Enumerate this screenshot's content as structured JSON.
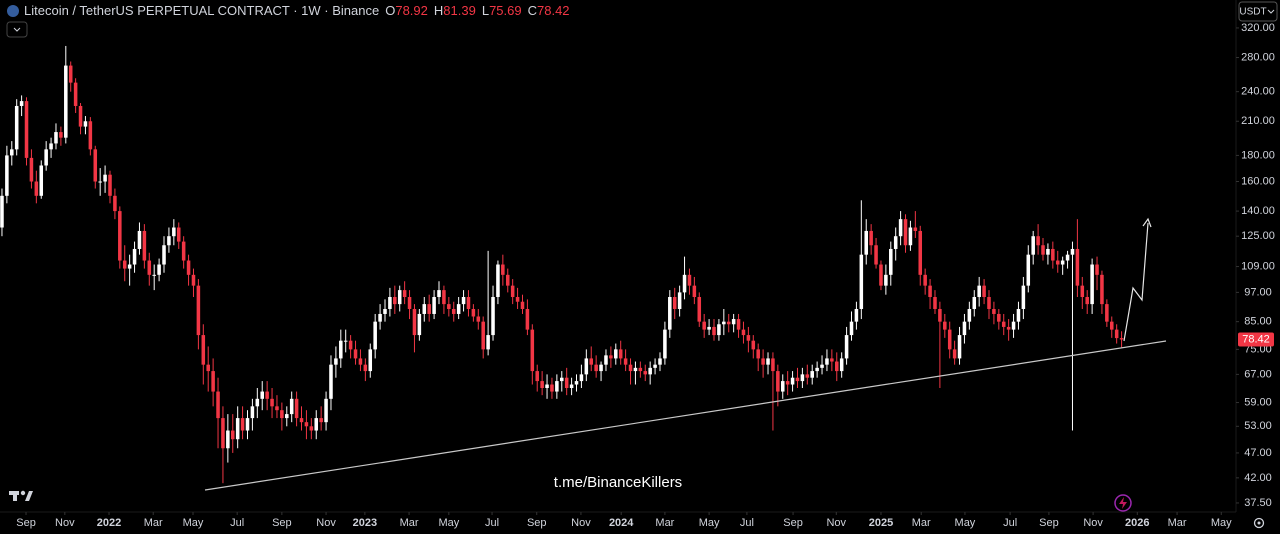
{
  "chart_data": {
    "type": "candlestick",
    "title": "Litecoin / TetherUS PERPETUAL CONTRACT · 1W · Binance",
    "ohlc_labels": [
      "O",
      "H",
      "L",
      "C"
    ],
    "currency": "USDT",
    "watermark": "t.me/BinanceKillers",
    "log_scale": true,
    "grid": false,
    "up_color": "#ffffff",
    "down_color": "#f23645",
    "open": [
      130,
      150,
      180,
      185,
      225,
      230,
      178,
      160,
      150,
      172,
      185,
      190,
      200,
      195,
      270,
      250,
      225,
      205,
      210,
      185,
      160,
      160,
      165,
      150,
      140,
      112,
      108,
      110,
      118,
      128,
      112,
      105,
      105,
      110,
      120,
      125,
      130,
      122,
      112,
      105,
      100,
      80,
      70,
      68,
      62,
      55,
      48,
      52,
      50,
      55,
      52,
      55,
      58,
      60,
      62,
      60,
      58,
      57,
      55,
      56,
      60,
      55,
      54,
      53,
      52,
      55,
      54,
      60,
      70,
      72,
      78,
      78,
      75,
      72,
      70,
      68,
      75,
      85,
      88,
      90,
      95,
      92,
      98,
      95,
      90,
      80,
      88,
      92,
      88,
      95,
      98,
      92,
      90,
      88,
      92,
      95,
      90,
      87,
      85,
      75,
      80,
      95,
      110,
      105,
      100,
      95,
      93,
      90,
      82,
      68,
      65,
      63,
      64,
      62,
      65,
      66,
      63,
      64,
      65,
      67,
      72,
      70,
      68,
      70,
      73,
      72,
      75,
      72,
      70,
      68,
      69,
      68,
      67,
      69,
      70,
      72,
      82,
      95,
      90,
      97,
      105,
      100,
      95,
      85,
      82,
      83,
      80,
      84,
      85,
      84,
      86,
      82,
      80,
      78,
      75,
      72,
      70,
      72,
      68,
      62,
      65,
      64,
      66,
      65,
      67,
      66,
      68,
      69,
      70,
      72,
      71,
      68,
      72,
      80,
      85,
      90,
      115,
      128,
      120,
      110,
      100,
      105,
      118,
      125,
      135,
      120,
      130,
      128,
      105,
      100,
      95,
      90,
      85,
      82,
      75,
      72,
      80,
      85,
      90,
      95,
      100,
      95,
      90,
      88,
      85,
      83,
      82,
      85,
      90,
      100,
      115,
      125,
      120,
      115,
      118,
      112,
      110,
      112,
      115,
      118,
      100,
      95,
      92,
      110,
      105,
      92,
      85,
      82,
      78.92
    ],
    "high": [
      155,
      188,
      192,
      232,
      236,
      234,
      185,
      168,
      176,
      192,
      195,
      208,
      205,
      295,
      275,
      255,
      228,
      215,
      214,
      188,
      170,
      172,
      168,
      155,
      143,
      120,
      115,
      122,
      133,
      132,
      116,
      110,
      113,
      125,
      130,
      135,
      133,
      125,
      115,
      108,
      103,
      84,
      76,
      72,
      66,
      58,
      56,
      56,
      58,
      58,
      57,
      60,
      63,
      65,
      65,
      63,
      61,
      59,
      58,
      62,
      62,
      58,
      57,
      55,
      57,
      58,
      62,
      73,
      76,
      82,
      82,
      80,
      78,
      75,
      72,
      77,
      88,
      92,
      94,
      99,
      100,
      100,
      102,
      98,
      92,
      90,
      95,
      96,
      98,
      102,
      100,
      95,
      93,
      95,
      98,
      98,
      92,
      90,
      87,
      117,
      100,
      112,
      115,
      108,
      103,
      99,
      96,
      94,
      84,
      70,
      68,
      67,
      66,
      67,
      68,
      69,
      66,
      67,
      70,
      75,
      76,
      73,
      71,
      75,
      76,
      77,
      78,
      75,
      72,
      71,
      71,
      70,
      71,
      72,
      74,
      85,
      98,
      99,
      100,
      114,
      108,
      104,
      97,
      88,
      86,
      86,
      86,
      90,
      88,
      88,
      88,
      85,
      83,
      80,
      77,
      75,
      74,
      74,
      70,
      67,
      68,
      68,
      69,
      69,
      70,
      70,
      71,
      73,
      75,
      75,
      74,
      74,
      83,
      89,
      93,
      147,
      135,
      132,
      124,
      112,
      110,
      122,
      130,
      140,
      138,
      134,
      140,
      131,
      108,
      103,
      98,
      93,
      88,
      85,
      78,
      83,
      88,
      93,
      98,
      104,
      103,
      98,
      93,
      90,
      88,
      86,
      88,
      93,
      104,
      120,
      128,
      132,
      124,
      121,
      122,
      117,
      114,
      117,
      122,
      135,
      104,
      98,
      113,
      114,
      107,
      94,
      87,
      84,
      81.39
    ],
    "low": [
      125,
      145,
      172,
      180,
      215,
      172,
      155,
      145,
      148,
      168,
      178,
      185,
      188,
      190,
      240,
      218,
      198,
      198,
      180,
      155,
      150,
      152,
      145,
      135,
      108,
      102,
      100,
      106,
      115,
      108,
      100,
      98,
      102,
      106,
      116,
      120,
      118,
      108,
      100,
      95,
      75,
      64,
      62,
      58,
      48,
      41,
      45,
      47,
      48,
      50,
      50,
      52,
      55,
      57,
      57,
      55,
      55,
      52,
      53,
      54,
      53,
      52,
      50,
      50,
      50,
      52,
      52,
      57,
      66,
      69,
      74,
      72,
      70,
      68,
      65,
      66,
      72,
      82,
      85,
      87,
      88,
      89,
      92,
      86,
      74,
      78,
      85,
      85,
      86,
      92,
      88,
      87,
      85,
      86,
      89,
      87,
      85,
      82,
      72,
      73,
      78,
      92,
      100,
      97,
      92,
      90,
      88,
      80,
      64,
      62,
      61,
      60,
      60,
      60,
      62,
      61,
      61,
      62,
      63,
      65,
      68,
      66,
      65,
      68,
      69,
      70,
      70,
      68,
      64,
      64,
      66,
      65,
      64,
      67,
      68,
      70,
      79,
      86,
      87,
      94,
      96,
      92,
      83,
      79,
      80,
      78,
      78,
      80,
      81,
      81,
      79,
      77,
      74,
      72,
      68,
      66,
      67,
      52,
      58,
      60,
      61,
      62,
      63,
      63,
      64,
      64,
      66,
      67,
      68,
      68,
      65,
      66,
      70,
      78,
      82,
      86,
      110,
      115,
      108,
      98,
      96,
      100,
      112,
      120,
      116,
      117,
      124,
      100,
      96,
      90,
      88,
      63,
      79,
      72,
      70,
      70,
      77,
      82,
      87,
      91,
      92,
      86,
      84,
      82,
      80,
      78,
      79,
      82,
      86,
      97,
      110,
      115,
      112,
      110,
      108,
      106,
      105,
      108,
      52,
      95,
      90,
      88,
      88,
      98,
      88,
      83,
      79,
      77,
      75.69
    ],
    "close": [
      150,
      180,
      185,
      225,
      230,
      178,
      160,
      150,
      172,
      185,
      190,
      200,
      195,
      270,
      250,
      225,
      205,
      210,
      185,
      160,
      160,
      165,
      150,
      140,
      112,
      108,
      110,
      118,
      128,
      112,
      105,
      105,
      110,
      120,
      125,
      130,
      122,
      112,
      105,
      100,
      80,
      70,
      68,
      62,
      55,
      48,
      52,
      50,
      55,
      52,
      55,
      58,
      60,
      62,
      60,
      58,
      57,
      55,
      56,
      60,
      55,
      54,
      53,
      52,
      55,
      54,
      60,
      70,
      72,
      78,
      78,
      75,
      72,
      70,
      68,
      75,
      85,
      88,
      90,
      95,
      92,
      98,
      95,
      90,
      80,
      88,
      92,
      88,
      95,
      98,
      92,
      90,
      88,
      92,
      95,
      90,
      87,
      85,
      75,
      80,
      95,
      110,
      105,
      100,
      95,
      93,
      90,
      82,
      68,
      65,
      63,
      64,
      62,
      65,
      66,
      63,
      64,
      65,
      67,
      72,
      70,
      68,
      70,
      73,
      72,
      75,
      72,
      70,
      68,
      69,
      68,
      67,
      69,
      70,
      72,
      82,
      95,
      90,
      97,
      105,
      100,
      95,
      85,
      82,
      83,
      80,
      84,
      85,
      84,
      86,
      82,
      80,
      78,
      75,
      72,
      70,
      72,
      68,
      62,
      65,
      64,
      66,
      65,
      67,
      66,
      68,
      69,
      70,
      72,
      71,
      68,
      72,
      80,
      85,
      90,
      115,
      128,
      120,
      110,
      100,
      105,
      118,
      125,
      135,
      120,
      130,
      128,
      105,
      100,
      95,
      90,
      85,
      82,
      75,
      72,
      80,
      85,
      90,
      95,
      100,
      95,
      90,
      88,
      85,
      83,
      82,
      85,
      90,
      100,
      115,
      125,
      120,
      115,
      118,
      112,
      110,
      112,
      115,
      118,
      100,
      95,
      92,
      110,
      105,
      92,
      85,
      82,
      78.92,
      78.42
    ],
    "xlim": [
      -0.4,
      251.3
    ],
    "xticks": [
      {
        "value": 4.9,
        "label": "Sep"
      },
      {
        "value": 12.8,
        "label": "Nov"
      },
      {
        "value": 21.8,
        "label": "2022"
      },
      {
        "value": 30.8,
        "label": "Mar"
      },
      {
        "value": 38.9,
        "label": "May"
      },
      {
        "value": 47.9,
        "label": "Jul"
      },
      {
        "value": 57.0,
        "label": "Sep"
      },
      {
        "value": 66.0,
        "label": "Nov"
      },
      {
        "value": 73.9,
        "label": "2023"
      },
      {
        "value": 82.9,
        "label": "Mar"
      },
      {
        "value": 91.0,
        "label": "May"
      },
      {
        "value": 99.8,
        "label": "Jul"
      },
      {
        "value": 108.9,
        "label": "Sep"
      },
      {
        "value": 117.9,
        "label": "Nov"
      },
      {
        "value": 126.1,
        "label": "2024"
      },
      {
        "value": 135.0,
        "label": "Mar"
      },
      {
        "value": 144.0,
        "label": "May"
      },
      {
        "value": 151.7,
        "label": "Jul"
      },
      {
        "value": 161.1,
        "label": "Sep"
      },
      {
        "value": 169.9,
        "label": "Nov"
      },
      {
        "value": 179.0,
        "label": "2025"
      },
      {
        "value": 187.2,
        "label": "Mar"
      },
      {
        "value": 196.1,
        "label": "May"
      },
      {
        "value": 205.3,
        "label": "Jul"
      },
      {
        "value": 213.2,
        "label": "Sep"
      },
      {
        "value": 222.2,
        "label": "Nov"
      },
      {
        "value": 231.2,
        "label": "2026"
      },
      {
        "value": 239.3,
        "label": "Mar"
      },
      {
        "value": 248.3,
        "label": "May"
      }
    ],
    "ylim": [
      36,
      363
    ],
    "yticks": [
      {
        "value": 320,
        "label": "320.00"
      },
      {
        "value": 280,
        "label": "280.00"
      },
      {
        "value": 240,
        "label": "240.00"
      },
      {
        "value": 210,
        "label": "210.00"
      },
      {
        "value": 180,
        "label": "180.00"
      },
      {
        "value": 160,
        "label": "160.00"
      },
      {
        "value": 140,
        "label": "140.00"
      },
      {
        "value": 125,
        "label": "125.00"
      },
      {
        "value": 109,
        "label": "109.00"
      },
      {
        "value": 97,
        "label": "97.00"
      },
      {
        "value": 85,
        "label": "85.00"
      },
      {
        "value": 75,
        "label": "75.00"
      },
      {
        "value": 67,
        "label": "67.00"
      },
      {
        "value": 59,
        "label": "59.00"
      },
      {
        "value": 53,
        "label": "53.00"
      },
      {
        "value": 47,
        "label": "47.00"
      },
      {
        "value": 42,
        "label": "42.00"
      },
      {
        "value": 37.5,
        "label": "37.50"
      }
    ]
  }
}
